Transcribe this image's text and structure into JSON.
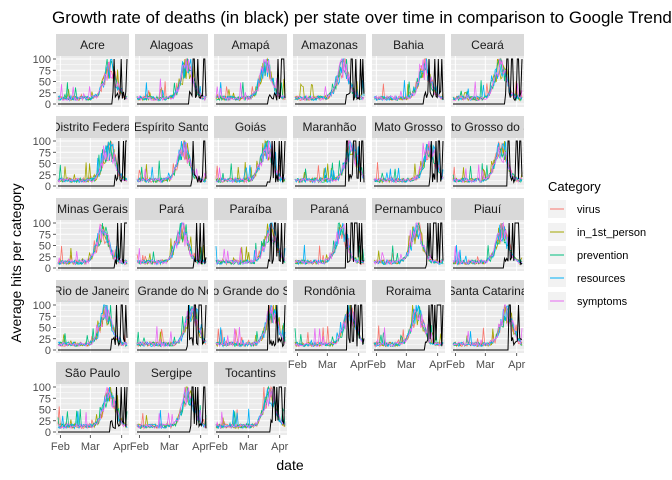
{
  "chart_data": {
    "type": "line",
    "title": "Growth rate of deaths (in black) per state over time in comparison to Google Trends",
    "xlabel": "date",
    "ylabel": "Average hits per category",
    "ylim": [
      0,
      100
    ],
    "y_ticks": [
      "0",
      "25",
      "50",
      "75",
      "100"
    ],
    "x_ticks": [
      "Feb",
      "Mar",
      "Apr"
    ],
    "x_tick_positions": [
      0.06,
      0.47,
      0.9
    ],
    "grid": true,
    "facet_columns": 6,
    "panels": [
      "Acre",
      "Alagoas",
      "Amapá",
      "Amazonas",
      "Bahia",
      "Ceará",
      "Distrito Federal",
      "Espírito Santo",
      "Goiás",
      "Maranhão",
      "Mato Grosso",
      "Mato Grosso do Sul",
      "Minas Gerais",
      "Pará",
      "Paraíba",
      "Paraná",
      "Pernambuco",
      "Piauí",
      "Rio de Janeiro",
      "Rio Grande do Norte",
      "Rio Grande do Sul",
      "Rondônia",
      "Roraima",
      "Santa Catarina",
      "São Paulo",
      "Sergipe",
      "Tocantins"
    ],
    "legend_title": "Category",
    "legend_placement": "right",
    "series": [
      {
        "name": "virus",
        "color": "#F8766D"
      },
      {
        "name": "in_1st_person",
        "color": "#A3A500"
      },
      {
        "name": "prevention",
        "color": "#00BF7D"
      },
      {
        "name": "resources",
        "color": "#00B0F6"
      },
      {
        "name": "symptoms",
        "color": "#E76BF3"
      }
    ],
    "deaths_color": "#000000"
  }
}
